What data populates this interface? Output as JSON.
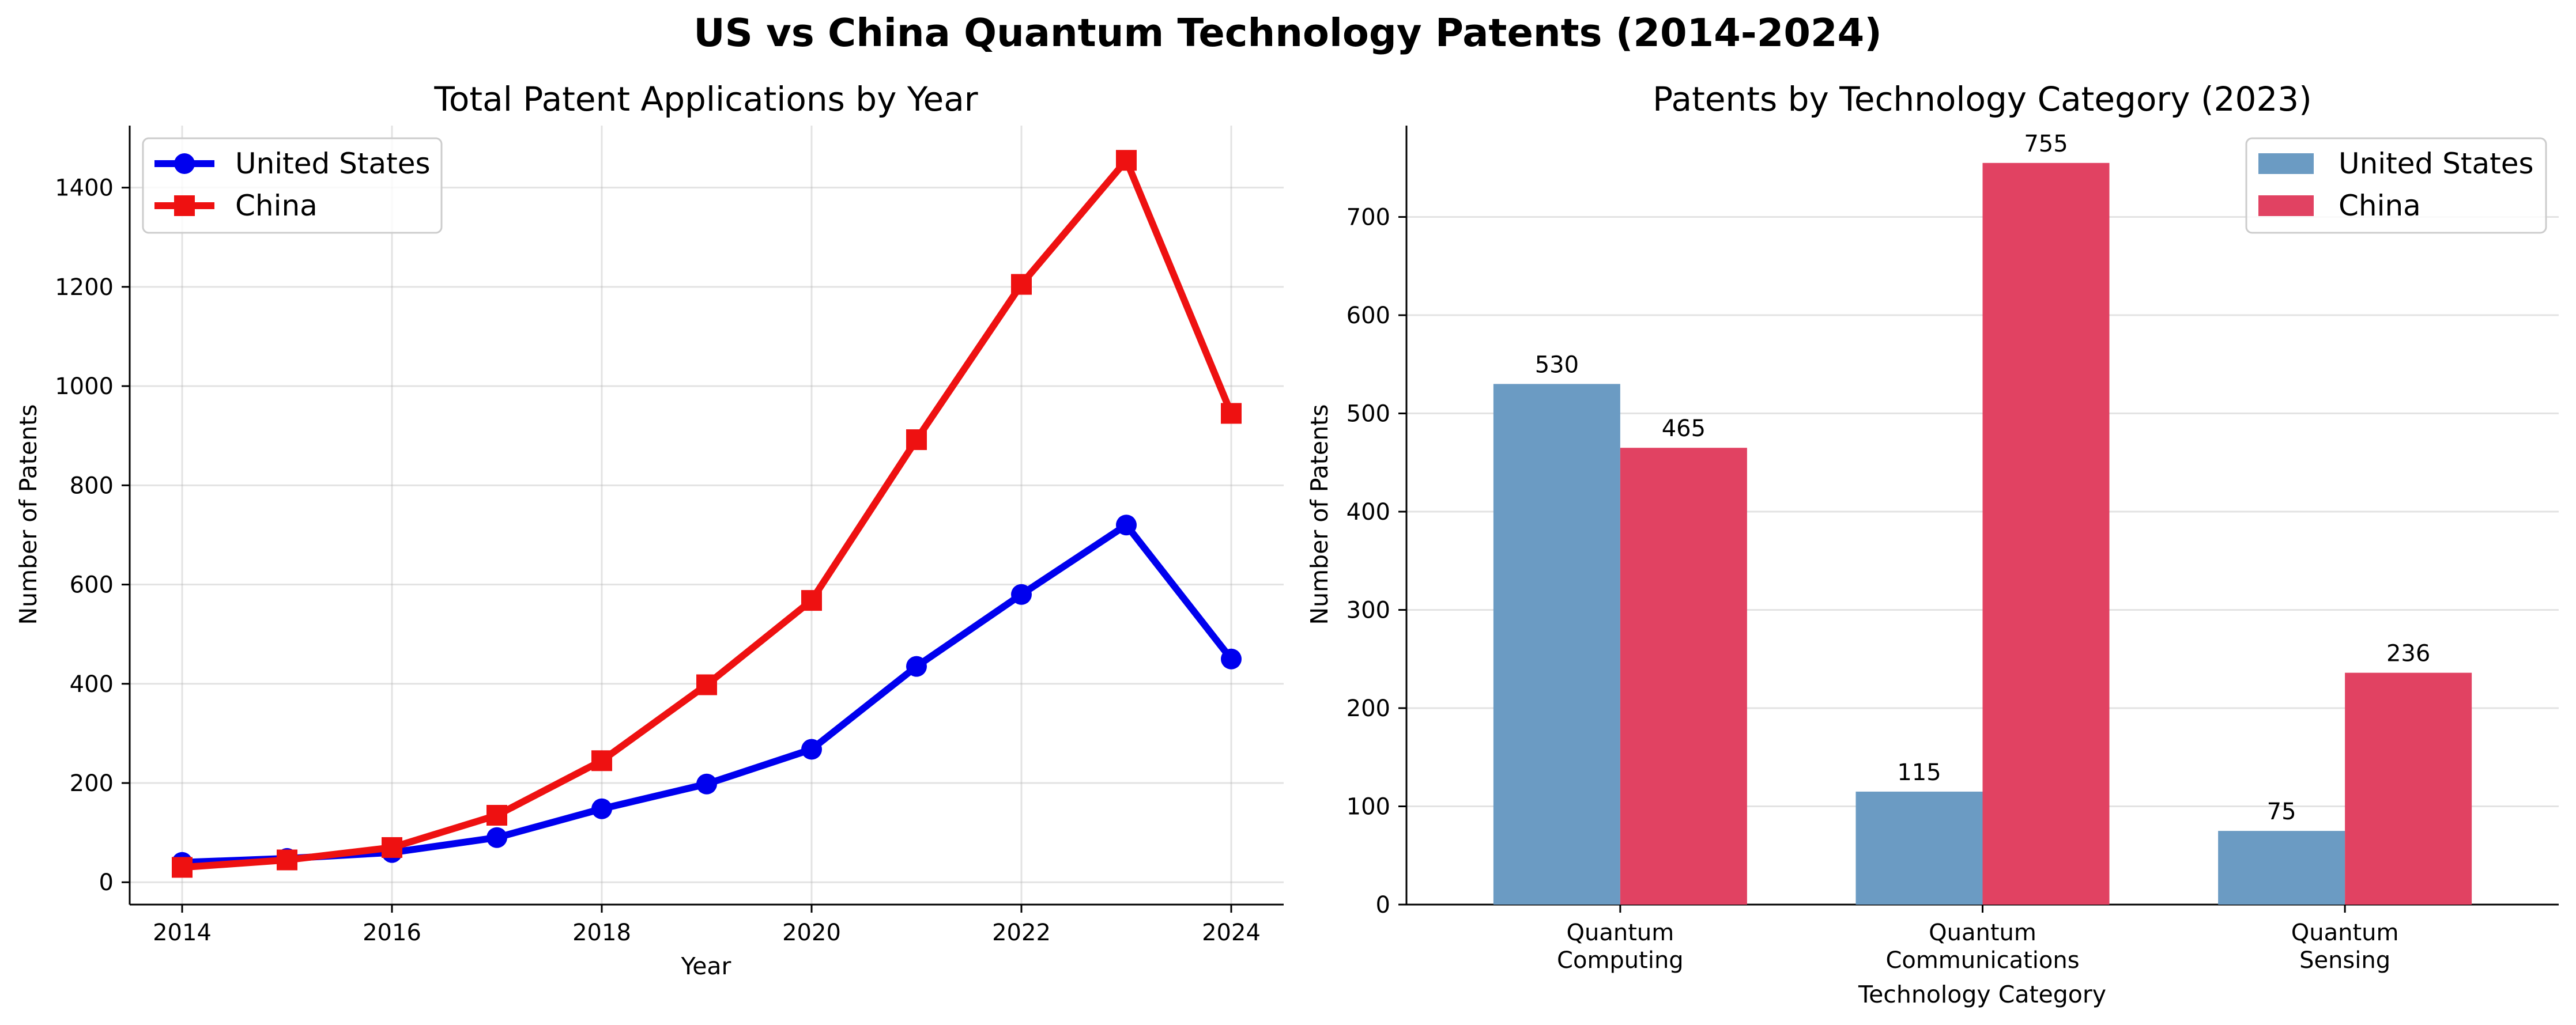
{
  "figure": {
    "title": "US vs China Quantum Technology Patents (2014-2024)"
  },
  "chart_data": [
    {
      "type": "line",
      "title": "Total Patent Applications by Year",
      "xlabel": "Year",
      "ylabel": "Number of Patents",
      "x": [
        2014,
        2015,
        2016,
        2017,
        2018,
        2019,
        2020,
        2021,
        2022,
        2023,
        2024
      ],
      "xlim": [
        2013.5,
        2024.5
      ],
      "ylim": [
        -45,
        1525
      ],
      "xticks": [
        2014,
        2016,
        2018,
        2020,
        2022,
        2024
      ],
      "yticks": [
        0,
        200,
        400,
        600,
        800,
        1000,
        1200,
        1400
      ],
      "grid": true,
      "legend_position": "top-left",
      "series": [
        {
          "name": "United States",
          "color": "#0000ee",
          "marker": "circle",
          "values": [
            40,
            48,
            60,
            90,
            148,
            198,
            268,
            435,
            580,
            720,
            450
          ]
        },
        {
          "name": "China",
          "color": "#ee1111",
          "marker": "square",
          "values": [
            30,
            45,
            70,
            135,
            245,
            398,
            568,
            892,
            1205,
            1455,
            945
          ]
        }
      ]
    },
    {
      "type": "bar",
      "title": "Patents by Technology Category (2023)",
      "xlabel": "Technology Category",
      "ylabel": "Number of Patents",
      "categories": [
        [
          "Quantum",
          "Computing"
        ],
        [
          "Quantum",
          "Communications"
        ],
        [
          "Quantum",
          "Sensing"
        ]
      ],
      "ylim": [
        0,
        793
      ],
      "yticks": [
        0,
        100,
        200,
        300,
        400,
        500,
        600,
        700
      ],
      "grid": true,
      "legend_position": "top-right",
      "series": [
        {
          "name": "United States",
          "color": "#6b9bc3",
          "values": [
            530,
            115,
            75
          ]
        },
        {
          "name": "China",
          "color": "#e14262",
          "values": [
            465,
            755,
            236
          ]
        }
      ]
    }
  ]
}
